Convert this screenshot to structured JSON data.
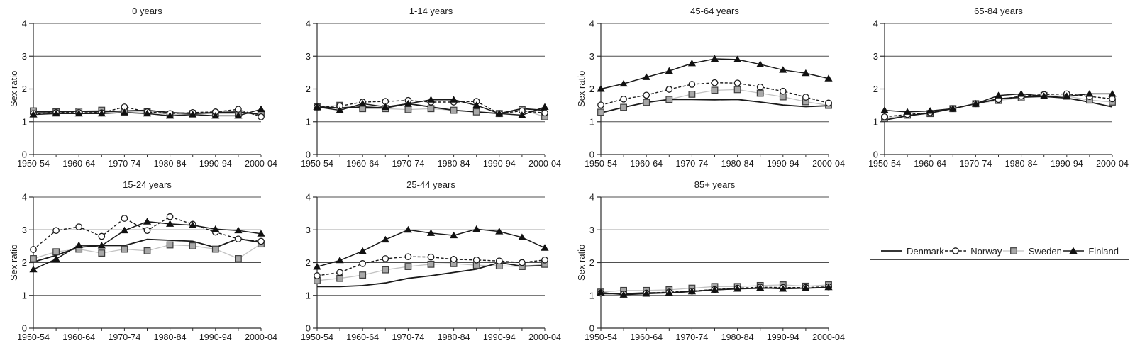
{
  "figure": {
    "ylabel_text": "Sex ratio",
    "y_ticks": [
      0,
      1,
      2,
      3,
      4
    ],
    "x_tick_labels": [
      "1950-54",
      "1960-64",
      "1970-74",
      "1980-84",
      "1990-94",
      "2000-04"
    ],
    "grid_color": "#4f4f4f",
    "axis_color": "#2e2e2e",
    "text_color": "#1a1a1a",
    "background_color": "#ffffff"
  },
  "legend": {
    "items": [
      {
        "label": "Denmark",
        "marker": "none",
        "line": "solid",
        "line_color": "#1a1a1a",
        "line_width": 1.8,
        "dash": "",
        "marker_fill": ""
      },
      {
        "label": "Norway",
        "marker": "circle",
        "line": "dashed",
        "line_color": "#1a1a1a",
        "line_width": 1.4,
        "dash": "4 2.6",
        "marker_fill": "#ffffff"
      },
      {
        "label": "Sweden",
        "marker": "square",
        "line": "solid",
        "line_color": "#c3c3c3",
        "line_width": 1.3,
        "dash": "",
        "marker_fill": "#a8a8a8"
      },
      {
        "label": "Finland",
        "marker": "triangle",
        "line": "solid",
        "line_color": "#1a1a1a",
        "line_width": 1.5,
        "dash": "",
        "marker_fill": "#111111"
      }
    ]
  },
  "chart_data": [
    {
      "type": "line",
      "title": "0 years",
      "ylabel": "Sex ratio",
      "xlabel": "",
      "ylim": [
        0,
        4
      ],
      "grid": true,
      "categories": [
        "1950-54",
        "1955-59",
        "1960-64",
        "1965-69",
        "1970-74",
        "1975-79",
        "1980-84",
        "1985-89",
        "1990-94",
        "1995-99",
        "2000-04"
      ],
      "series": [
        {
          "name": "Denmark",
          "values": [
            1.3,
            1.3,
            1.32,
            1.3,
            1.33,
            1.35,
            1.28,
            1.25,
            1.28,
            1.3,
            1.22
          ]
        },
        {
          "name": "Norway",
          "values": [
            1.25,
            1.28,
            1.28,
            1.27,
            1.45,
            1.3,
            1.25,
            1.28,
            1.3,
            1.38,
            1.15
          ]
        },
        {
          "name": "Sweden",
          "values": [
            1.33,
            1.3,
            1.32,
            1.35,
            1.3,
            1.3,
            1.22,
            1.25,
            1.25,
            1.25,
            1.25
          ]
        },
        {
          "name": "Finland",
          "values": [
            1.22,
            1.25,
            1.25,
            1.25,
            1.28,
            1.25,
            1.18,
            1.22,
            1.18,
            1.18,
            1.38
          ]
        }
      ]
    },
    {
      "type": "line",
      "title": "1-14 years",
      "ylabel": "",
      "xlabel": "",
      "ylim": [
        0,
        4
      ],
      "grid": true,
      "categories": [
        "1950-54",
        "1955-59",
        "1960-64",
        "1965-69",
        "1970-74",
        "1975-79",
        "1980-84",
        "1985-89",
        "1990-94",
        "1995-99",
        "2000-04"
      ],
      "series": [
        {
          "name": "Denmark",
          "values": [
            1.45,
            1.42,
            1.45,
            1.42,
            1.55,
            1.45,
            1.35,
            1.3,
            1.25,
            1.4,
            1.35
          ]
        },
        {
          "name": "Norway",
          "values": [
            1.45,
            1.48,
            1.6,
            1.62,
            1.65,
            1.6,
            1.6,
            1.62,
            1.25,
            1.33,
            1.27
          ]
        },
        {
          "name": "Sweden",
          "values": [
            1.45,
            1.5,
            1.4,
            1.4,
            1.37,
            1.4,
            1.35,
            1.3,
            1.25,
            1.37,
            1.15
          ]
        },
        {
          "name": "Finland",
          "values": [
            1.45,
            1.35,
            1.55,
            1.45,
            1.55,
            1.67,
            1.67,
            1.5,
            1.25,
            1.2,
            1.45
          ]
        }
      ]
    },
    {
      "type": "line",
      "title": "45-64 years",
      "ylabel": "Sex ratio",
      "xlabel": "",
      "ylim": [
        0,
        4
      ],
      "grid": true,
      "categories": [
        "1950-54",
        "1955-59",
        "1960-64",
        "1965-69",
        "1970-74",
        "1975-79",
        "1980-84",
        "1985-89",
        "1990-94",
        "1995-99",
        "2000-04"
      ],
      "series": [
        {
          "name": "Denmark",
          "values": [
            1.27,
            1.44,
            1.59,
            1.68,
            1.68,
            1.67,
            1.68,
            1.6,
            1.51,
            1.46,
            1.49
          ]
        },
        {
          "name": "Norway",
          "values": [
            1.51,
            1.69,
            1.81,
            1.99,
            2.14,
            2.19,
            2.18,
            2.06,
            1.93,
            1.75,
            1.57
          ]
        },
        {
          "name": "Sweden",
          "values": [
            1.29,
            1.44,
            1.59,
            1.68,
            1.84,
            1.96,
            1.98,
            1.87,
            1.76,
            1.61,
            1.5
          ]
        },
        {
          "name": "Finland",
          "values": [
            2.0,
            2.16,
            2.36,
            2.55,
            2.78,
            2.92,
            2.9,
            2.75,
            2.58,
            2.48,
            2.32
          ]
        }
      ]
    },
    {
      "type": "line",
      "title": "65-84 years",
      "ylabel": "",
      "xlabel": "",
      "ylim": [
        0,
        4
      ],
      "grid": true,
      "categories": [
        "1950-54",
        "1955-59",
        "1960-64",
        "1965-69",
        "1970-74",
        "1975-79",
        "1980-84",
        "1985-89",
        "1990-94",
        "1995-99",
        "2000-04"
      ],
      "series": [
        {
          "name": "Denmark",
          "values": [
            1.05,
            1.18,
            1.27,
            1.4,
            1.55,
            1.7,
            1.75,
            1.77,
            1.72,
            1.6,
            1.45
          ]
        },
        {
          "name": "Norway",
          "values": [
            1.15,
            1.22,
            1.28,
            1.4,
            1.55,
            1.68,
            1.78,
            1.83,
            1.85,
            1.77,
            1.7
          ]
        },
        {
          "name": "Sweden",
          "values": [
            1.1,
            1.2,
            1.25,
            1.4,
            1.55,
            1.65,
            1.73,
            1.8,
            1.78,
            1.66,
            1.6
          ]
        },
        {
          "name": "Finland",
          "values": [
            1.35,
            1.3,
            1.33,
            1.4,
            1.55,
            1.8,
            1.85,
            1.78,
            1.78,
            1.85,
            1.85
          ]
        }
      ]
    },
    {
      "type": "line",
      "title": "15-24 years",
      "ylabel": "Sex ratio",
      "xlabel": "",
      "ylim": [
        0,
        4
      ],
      "grid": true,
      "categories": [
        "1950-54",
        "1955-59",
        "1960-64",
        "1965-69",
        "1970-74",
        "1975-79",
        "1980-84",
        "1985-89",
        "1990-94",
        "1995-99",
        "2000-04"
      ],
      "series": [
        {
          "name": "Denmark",
          "values": [
            2.02,
            2.22,
            2.47,
            2.52,
            2.52,
            2.71,
            2.68,
            2.65,
            2.46,
            2.73,
            2.61
          ]
        },
        {
          "name": "Norway",
          "values": [
            2.4,
            2.98,
            3.09,
            2.8,
            3.35,
            2.98,
            3.4,
            3.17,
            2.93,
            2.72,
            2.65
          ]
        },
        {
          "name": "Sweden",
          "values": [
            2.12,
            2.33,
            2.41,
            2.29,
            2.41,
            2.36,
            2.54,
            2.51,
            2.41,
            2.12,
            2.57
          ]
        },
        {
          "name": "Finland",
          "values": [
            1.79,
            2.11,
            2.53,
            2.52,
            2.98,
            3.25,
            3.18,
            3.14,
            3.02,
            2.98,
            2.88
          ]
        }
      ]
    },
    {
      "type": "line",
      "title": "25-44 years",
      "ylabel": "",
      "xlabel": "",
      "ylim": [
        0,
        4
      ],
      "grid": true,
      "categories": [
        "1950-54",
        "1955-59",
        "1960-64",
        "1965-69",
        "1970-74",
        "1975-79",
        "1980-84",
        "1985-89",
        "1990-94",
        "1995-99",
        "2000-04"
      ],
      "series": [
        {
          "name": "Denmark",
          "values": [
            1.27,
            1.27,
            1.3,
            1.38,
            1.52,
            1.6,
            1.7,
            1.8,
            2.0,
            1.89,
            1.91
          ]
        },
        {
          "name": "Norway",
          "values": [
            1.6,
            1.7,
            1.97,
            2.12,
            2.18,
            2.17,
            2.1,
            2.08,
            2.05,
            2.0,
            2.08
          ]
        },
        {
          "name": "Sweden",
          "values": [
            1.45,
            1.52,
            1.62,
            1.78,
            1.88,
            1.95,
            1.97,
            1.92,
            1.9,
            1.88,
            1.95
          ]
        },
        {
          "name": "Finland",
          "values": [
            1.87,
            2.07,
            2.35,
            2.7,
            3.0,
            2.9,
            2.83,
            3.02,
            2.95,
            2.77,
            2.45
          ]
        }
      ]
    },
    {
      "type": "line",
      "title": "85+ years",
      "ylabel": "Sex ratio",
      "xlabel": "",
      "ylim": [
        0,
        4
      ],
      "grid": true,
      "categories": [
        "1950-54",
        "1955-59",
        "1960-64",
        "1965-69",
        "1970-74",
        "1975-79",
        "1980-84",
        "1985-89",
        "1990-94",
        "1995-99",
        "2000-04"
      ],
      "series": [
        {
          "name": "Denmark",
          "values": [
            1.05,
            1.05,
            1.08,
            1.08,
            1.12,
            1.17,
            1.2,
            1.22,
            1.22,
            1.22,
            1.24
          ]
        },
        {
          "name": "Norway",
          "values": [
            1.07,
            1.04,
            1.07,
            1.1,
            1.13,
            1.18,
            1.22,
            1.25,
            1.24,
            1.24,
            1.26
          ]
        },
        {
          "name": "Sweden",
          "values": [
            1.1,
            1.15,
            1.15,
            1.17,
            1.22,
            1.27,
            1.27,
            1.3,
            1.32,
            1.28,
            1.32
          ]
        },
        {
          "name": "Finland",
          "values": [
            1.09,
            1.02,
            1.05,
            1.08,
            1.12,
            1.17,
            1.2,
            1.23,
            1.2,
            1.22,
            1.25
          ]
        }
      ]
    }
  ]
}
